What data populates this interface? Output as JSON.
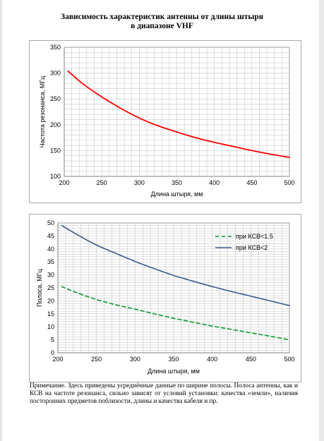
{
  "document": {
    "title_line1": "Зависимость характеристик антенны от длины штыря",
    "title_line2": "в диапазоне VHF",
    "note": "Примечание. Здесь приведены усреднённые данные по ширине полосы. Полоса антенны, как и КСВ на частоте резонанса, сильно зависят от условий установки: качества «земли», наличия посторонних предметов поблизости, длины и качества кабеля и пр."
  },
  "colors": {
    "frequency_line": "#ff0000",
    "bandwidth_vswr_1_5": "#22a045",
    "bandwidth_vswr_2": "#3a5a8c",
    "grid": "#c8c8c8",
    "frame": "#a9a9a9"
  },
  "chart_data": [
    {
      "type": "line",
      "xlabel": "Длина штыря, мм",
      "ylabel": "Частота резонанса, МГц",
      "xlim": [
        200,
        500
      ],
      "ylim": [
        100,
        350
      ],
      "x_ticks": [
        200,
        250,
        300,
        350,
        400,
        450,
        500
      ],
      "y_ticks": [
        100,
        150,
        200,
        250,
        300,
        350
      ],
      "grid": true,
      "series": [
        {
          "name": "",
          "x": [
            205,
            225,
            250,
            275,
            300,
            325,
            350,
            375,
            400,
            425,
            450,
            475,
            500
          ],
          "y": [
            304,
            279,
            254,
            232,
            213,
            198,
            186,
            175,
            166,
            158,
            150,
            143,
            137
          ]
        }
      ]
    },
    {
      "type": "line",
      "xlabel": "Длина штыря, мм",
      "ylabel": "Полоса, МГц",
      "xlim": [
        200,
        500
      ],
      "ylim": [
        0,
        50
      ],
      "x_ticks": [
        200,
        250,
        300,
        350,
        400,
        450,
        500
      ],
      "y_ticks": [
        0,
        5,
        10,
        15,
        20,
        25,
        30,
        35,
        40,
        45,
        50
      ],
      "grid": true,
      "legend": "top-right",
      "series": [
        {
          "name": "при КСВ<1.5",
          "style": "dashed",
          "x": [
            205,
            225,
            250,
            275,
            300,
            325,
            350,
            375,
            400,
            425,
            450,
            475,
            500
          ],
          "y": [
            25.5,
            23.1,
            20.5,
            18.5,
            16.8,
            15.0,
            13.3,
            11.8,
            10.3,
            9.0,
            7.7,
            6.4,
            5.0
          ]
        },
        {
          "name": "при КСВ<2",
          "style": "solid",
          "x": [
            205,
            225,
            250,
            275,
            300,
            325,
            350,
            375,
            400,
            425,
            450,
            475,
            500
          ],
          "y": [
            49,
            45.5,
            41.5,
            38.3,
            35.2,
            32.4,
            29.8,
            27.6,
            25.5,
            23.6,
            21.8,
            20.0,
            18.2
          ]
        }
      ]
    }
  ]
}
